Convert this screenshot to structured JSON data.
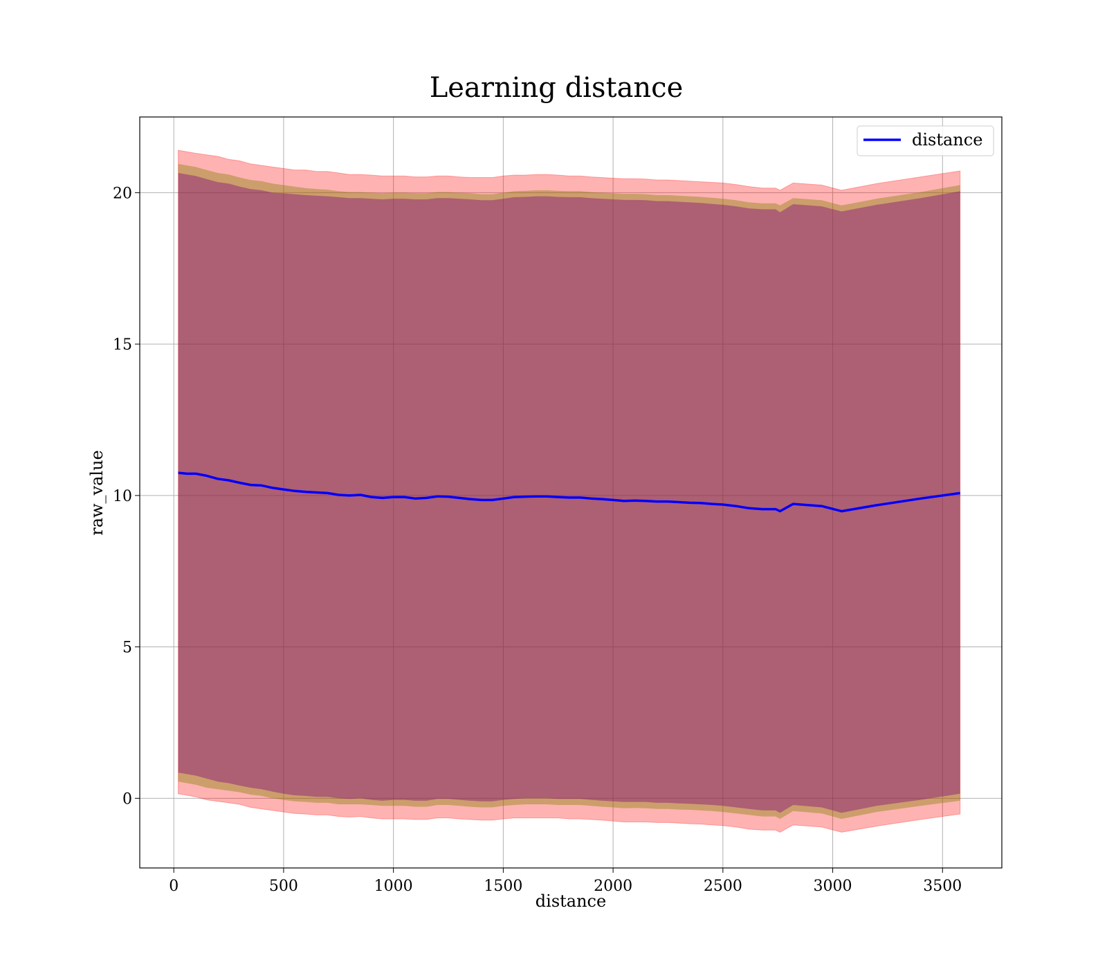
{
  "chart_data": {
    "type": "line",
    "title": "Learning distance",
    "xlabel": "distance",
    "ylabel": "raw_value",
    "xlim": [
      -155,
      3770
    ],
    "ylim": [
      -2.3,
      22.5
    ],
    "xticks": [
      0,
      500,
      1000,
      1500,
      2000,
      2500,
      3000,
      3500
    ],
    "yticks": [
      0,
      5,
      10,
      15,
      20
    ],
    "grid": true,
    "legend": {
      "position": "top-right",
      "entries": [
        "distance"
      ]
    },
    "colors": {
      "line": "#0000ff",
      "outer_band": "#ff0000",
      "middle_band": "#808000",
      "inner_band": "#800080",
      "grid": "#b0b0b0"
    },
    "series": [
      {
        "name": "distance",
        "x": [
          20,
          60,
          100,
          150,
          200,
          250,
          300,
          350,
          400,
          450,
          500,
          550,
          600,
          650,
          700,
          750,
          800,
          850,
          900,
          950,
          1000,
          1050,
          1100,
          1150,
          1200,
          1250,
          1300,
          1350,
          1400,
          1450,
          1500,
          1550,
          1600,
          1650,
          1700,
          1750,
          1800,
          1850,
          1900,
          1950,
          2000,
          2050,
          2100,
          2150,
          2200,
          2250,
          2300,
          2350,
          2400,
          2450,
          2500,
          2560,
          2620,
          2680,
          2740,
          2760,
          2820,
          2950,
          3040,
          3200,
          3400,
          3580
        ],
        "y": [
          10.75,
          10.72,
          10.72,
          10.65,
          10.55,
          10.5,
          10.42,
          10.35,
          10.33,
          10.25,
          10.2,
          10.15,
          10.12,
          10.1,
          10.08,
          10.02,
          10.0,
          10.02,
          9.95,
          9.92,
          9.95,
          9.95,
          9.9,
          9.92,
          9.97,
          9.96,
          9.92,
          9.88,
          9.85,
          9.85,
          9.9,
          9.95,
          9.96,
          9.97,
          9.97,
          9.95,
          9.93,
          9.93,
          9.9,
          9.88,
          9.85,
          9.82,
          9.83,
          9.82,
          9.8,
          9.8,
          9.78,
          9.76,
          9.75,
          9.72,
          9.7,
          9.65,
          9.58,
          9.55,
          9.55,
          9.48,
          9.72,
          9.65,
          9.48,
          9.68,
          9.9,
          10.08
        ],
        "outer_band": {
          "upper": [
            21.4,
            21.35,
            21.3,
            21.25,
            21.2,
            21.1,
            21.05,
            20.95,
            20.9,
            20.85,
            20.8,
            20.75,
            20.75,
            20.7,
            20.7,
            20.65,
            20.6,
            20.6,
            20.58,
            20.55,
            20.55,
            20.55,
            20.52,
            20.52,
            20.55,
            20.55,
            20.52,
            20.5,
            20.5,
            20.5,
            20.55,
            20.58,
            20.58,
            20.6,
            20.6,
            20.58,
            20.55,
            20.55,
            20.52,
            20.5,
            20.48,
            20.46,
            20.46,
            20.45,
            20.42,
            20.42,
            20.4,
            20.38,
            20.36,
            20.34,
            20.32,
            20.27,
            20.2,
            20.15,
            20.15,
            20.08,
            20.32,
            20.25,
            20.08,
            20.3,
            20.52,
            20.72
          ],
          "lower": [
            0.15,
            0.1,
            0.05,
            -0.05,
            -0.1,
            -0.15,
            -0.2,
            -0.3,
            -0.35,
            -0.4,
            -0.45,
            -0.5,
            -0.52,
            -0.55,
            -0.55,
            -0.6,
            -0.62,
            -0.6,
            -0.65,
            -0.68,
            -0.68,
            -0.68,
            -0.7,
            -0.7,
            -0.65,
            -0.65,
            -0.68,
            -0.7,
            -0.72,
            -0.72,
            -0.68,
            -0.65,
            -0.65,
            -0.65,
            -0.65,
            -0.65,
            -0.68,
            -0.68,
            -0.7,
            -0.72,
            -0.75,
            -0.78,
            -0.78,
            -0.78,
            -0.8,
            -0.8,
            -0.82,
            -0.84,
            -0.85,
            -0.88,
            -0.9,
            -0.95,
            -1.02,
            -1.05,
            -1.05,
            -1.12,
            -0.88,
            -0.95,
            -1.12,
            -0.92,
            -0.7,
            -0.52
          ]
        },
        "middle_band": {
          "upper": [
            20.95,
            20.9,
            20.85,
            20.75,
            20.65,
            20.6,
            20.5,
            20.42,
            20.38,
            20.3,
            20.25,
            20.2,
            20.15,
            20.12,
            20.1,
            20.05,
            20.02,
            20.02,
            20.0,
            19.98,
            20.0,
            20.0,
            19.98,
            19.98,
            20.02,
            20.02,
            20.0,
            19.98,
            19.95,
            19.95,
            20.0,
            20.05,
            20.06,
            20.08,
            20.08,
            20.06,
            20.05,
            20.05,
            20.02,
            20.0,
            19.98,
            19.96,
            19.96,
            19.95,
            19.92,
            19.92,
            19.9,
            19.88,
            19.86,
            19.83,
            19.8,
            19.75,
            19.68,
            19.65,
            19.65,
            19.58,
            19.82,
            19.75,
            19.58,
            19.8,
            20.02,
            20.25
          ],
          "lower": [
            0.55,
            0.5,
            0.45,
            0.35,
            0.3,
            0.25,
            0.2,
            0.12,
            0.08,
            0.0,
            -0.05,
            -0.1,
            -0.12,
            -0.15,
            -0.15,
            -0.2,
            -0.2,
            -0.2,
            -0.22,
            -0.25,
            -0.25,
            -0.25,
            -0.28,
            -0.28,
            -0.22,
            -0.22,
            -0.25,
            -0.28,
            -0.3,
            -0.3,
            -0.25,
            -0.22,
            -0.2,
            -0.2,
            -0.2,
            -0.22,
            -0.22,
            -0.22,
            -0.25,
            -0.28,
            -0.3,
            -0.33,
            -0.32,
            -0.33,
            -0.35,
            -0.35,
            -0.37,
            -0.38,
            -0.4,
            -0.42,
            -0.45,
            -0.5,
            -0.55,
            -0.6,
            -0.6,
            -0.68,
            -0.42,
            -0.5,
            -0.68,
            -0.45,
            -0.25,
            -0.08
          ]
        },
        "inner_band": {
          "upper": [
            20.65,
            20.6,
            20.55,
            20.45,
            20.35,
            20.3,
            20.2,
            20.12,
            20.08,
            20.0,
            19.98,
            19.95,
            19.92,
            19.9,
            19.88,
            19.85,
            19.82,
            19.82,
            19.8,
            19.78,
            19.8,
            19.8,
            19.78,
            19.78,
            19.82,
            19.82,
            19.8,
            19.78,
            19.75,
            19.75,
            19.8,
            19.85,
            19.86,
            19.88,
            19.88,
            19.86,
            19.85,
            19.85,
            19.82,
            19.8,
            19.78,
            19.76,
            19.76,
            19.75,
            19.72,
            19.72,
            19.7,
            19.68,
            19.66,
            19.63,
            19.6,
            19.55,
            19.48,
            19.45,
            19.45,
            19.35,
            19.62,
            19.55,
            19.38,
            19.6,
            19.82,
            20.05
          ],
          "lower": [
            0.85,
            0.8,
            0.75,
            0.65,
            0.55,
            0.5,
            0.42,
            0.35,
            0.3,
            0.22,
            0.15,
            0.1,
            0.08,
            0.05,
            0.05,
            0.0,
            -0.02,
            0.0,
            -0.05,
            -0.08,
            -0.05,
            -0.05,
            -0.08,
            -0.08,
            -0.02,
            -0.02,
            -0.05,
            -0.08,
            -0.1,
            -0.1,
            -0.05,
            -0.02,
            0.0,
            0.0,
            0.0,
            -0.02,
            -0.02,
            -0.02,
            -0.05,
            -0.08,
            -0.1,
            -0.12,
            -0.12,
            -0.12,
            -0.15,
            -0.15,
            -0.17,
            -0.18,
            -0.2,
            -0.22,
            -0.25,
            -0.3,
            -0.35,
            -0.4,
            -0.4,
            -0.48,
            -0.22,
            -0.3,
            -0.48,
            -0.25,
            -0.05,
            0.15
          ]
        }
      }
    ]
  }
}
